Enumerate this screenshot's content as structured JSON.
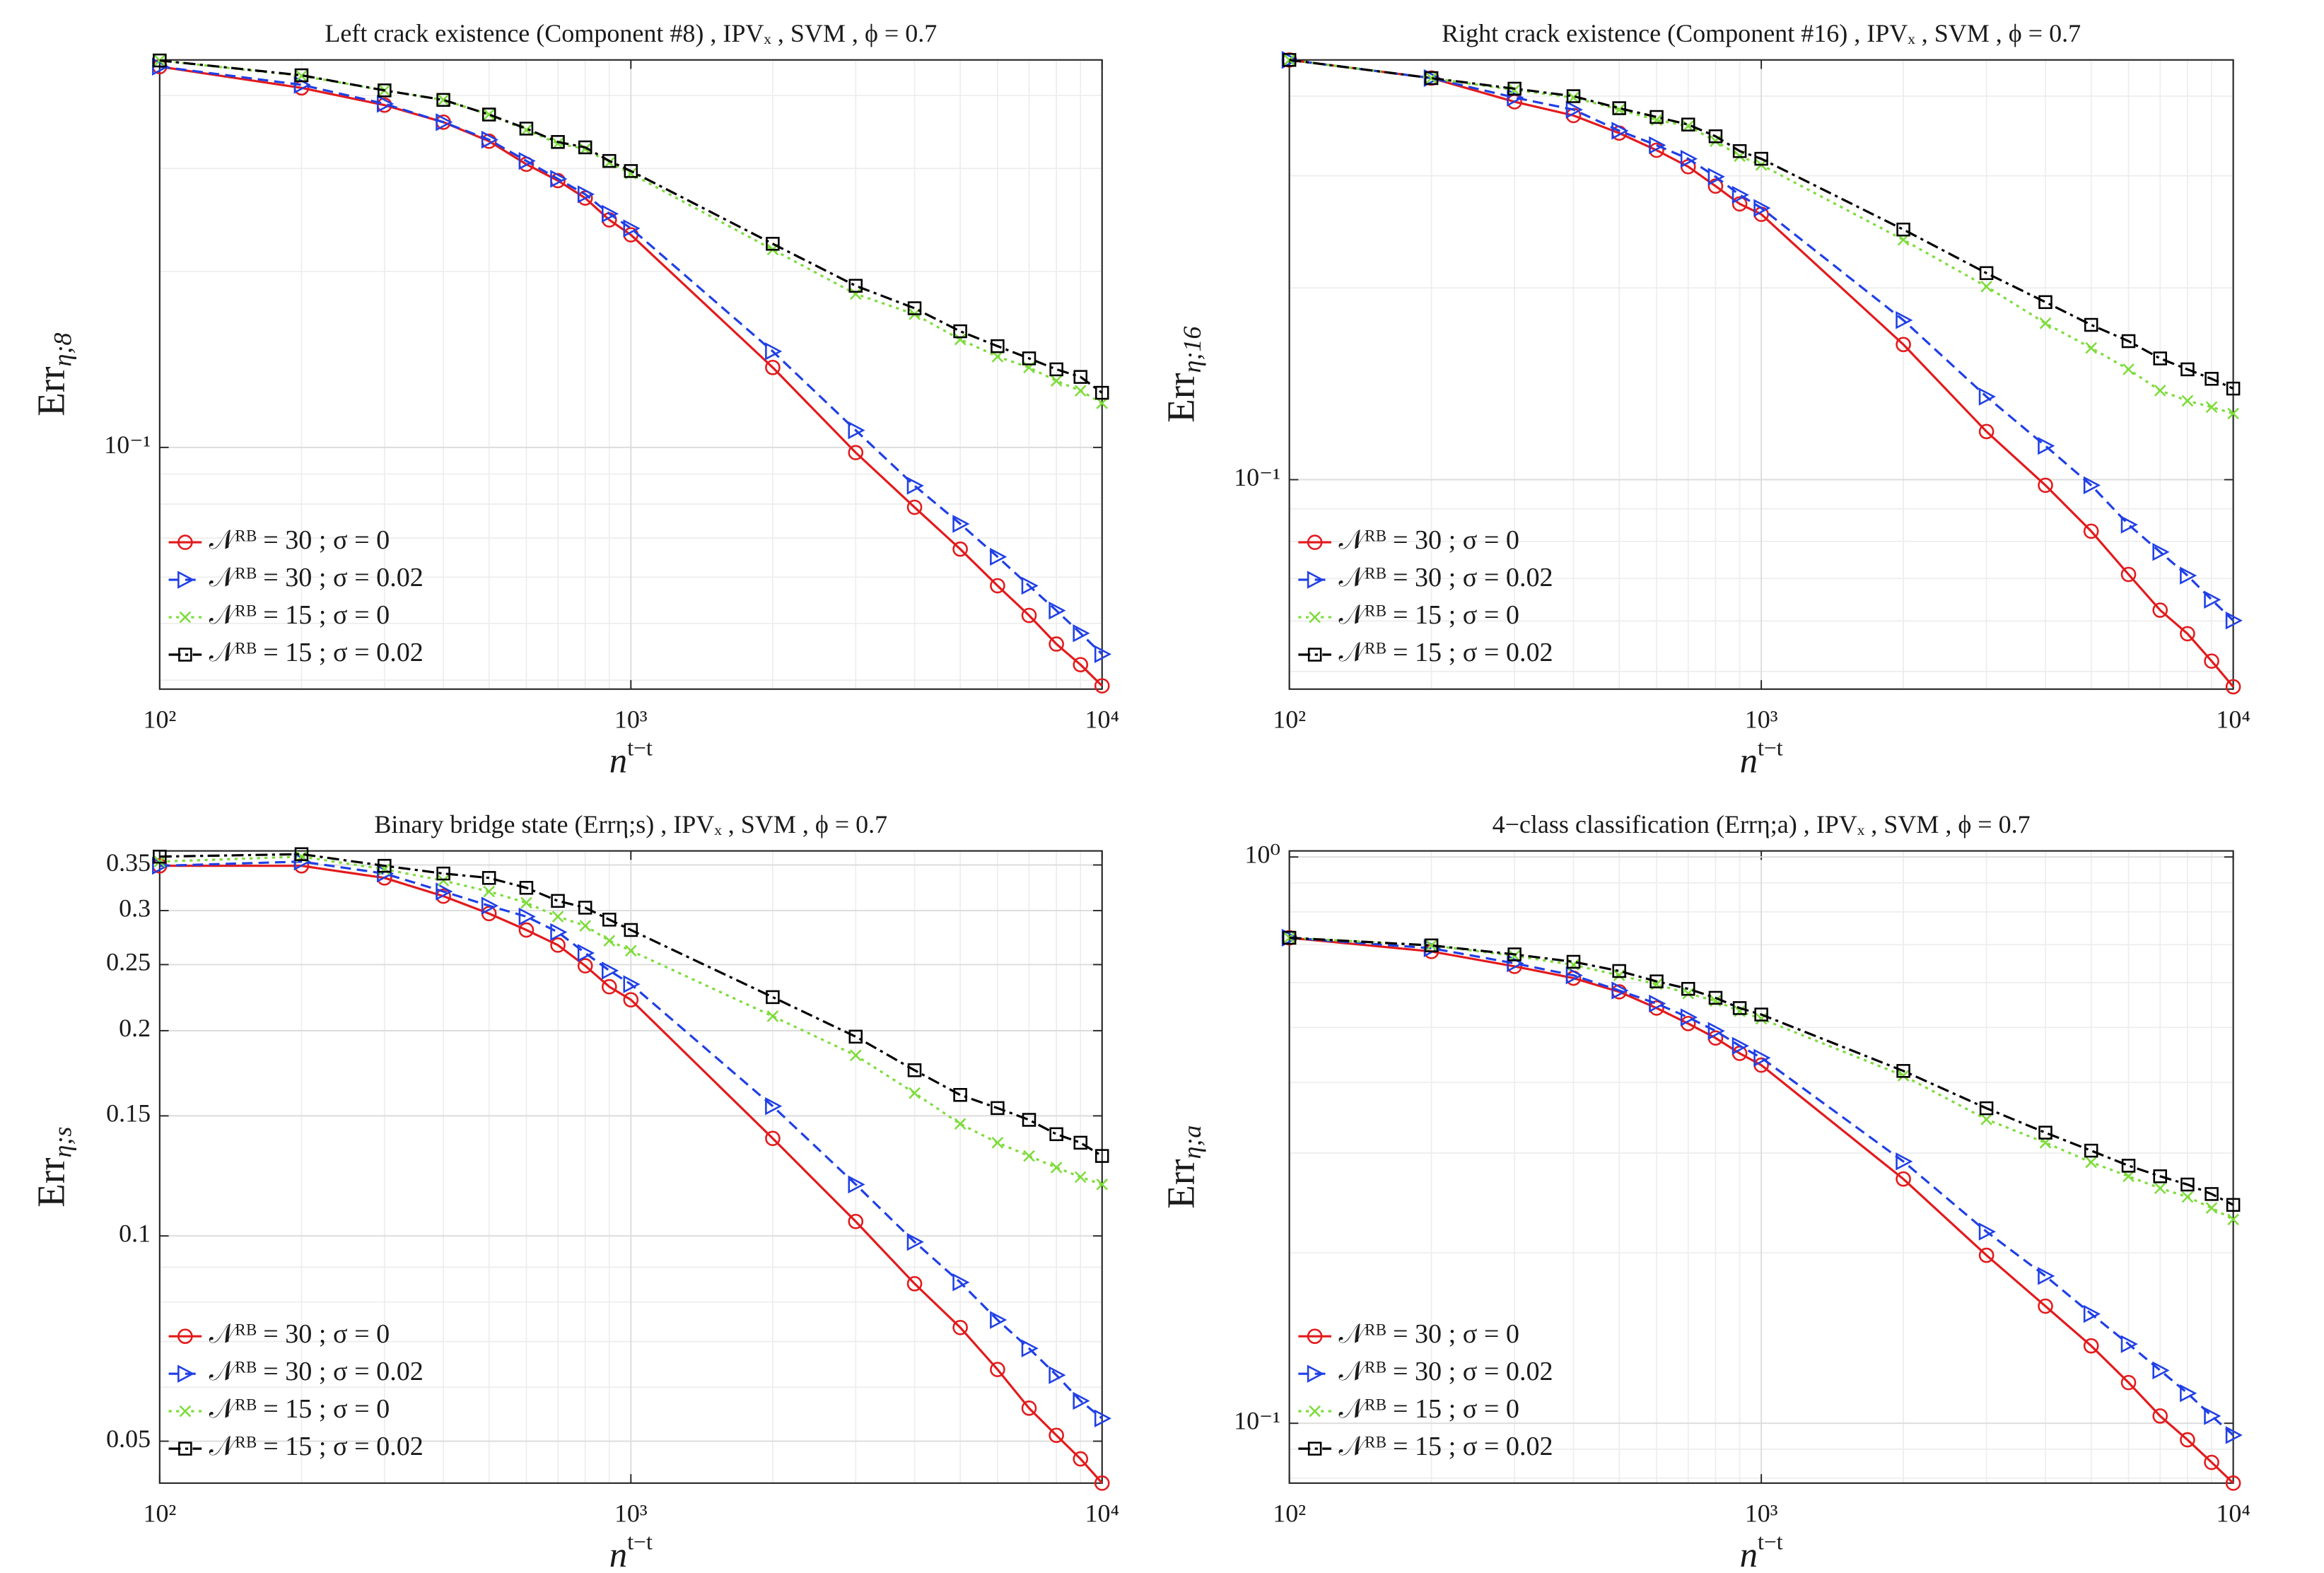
{
  "chart_data": [
    {
      "type": "line",
      "title": "Left crack existence (Component #8) , IPVₓ , SVM , ϕ = 0.7",
      "xlabel": [
        "n",
        "t−t"
      ],
      "ylabel": [
        "Err",
        "η;8"
      ],
      "xscale": "log",
      "yscale": "log",
      "grid": true,
      "minor_grid": true,
      "legend": "lower left",
      "xlim": [
        100,
        10000
      ],
      "ylim": [
        0.0386,
        0.46
      ],
      "xticks": [
        {
          "value": 100,
          "label": "10²"
        },
        {
          "value": 1000,
          "label": "10³"
        },
        {
          "value": 10000,
          "label": "10⁴"
        }
      ],
      "yticks": [
        {
          "value": 0.1,
          "label": "10⁻¹"
        }
      ],
      "x": [
        100,
        200,
        300,
        400,
        500,
        600,
        700,
        800,
        900,
        1000,
        2000,
        3000,
        4000,
        5000,
        6000,
        7000,
        8000,
        9000,
        10000
      ],
      "series": [
        {
          "name": "𝒩ᴿᴮ = 30 ; σ = 0",
          "color": "#e31a1c",
          "linestyle": "solid",
          "marker": "circle",
          "values": [
            0.448,
            0.412,
            0.385,
            0.36,
            0.334,
            0.305,
            0.286,
            0.267,
            0.245,
            0.231,
            0.137,
            0.098,
            0.079,
            0.067,
            0.058,
            0.0516,
            0.0461,
            0.0425,
            0.0391
          ]
        },
        {
          "name": "𝒩ᴿᴮ = 30 ; σ = 0.02",
          "color": "#1f3fe6",
          "linestyle": "dashed",
          "marker": "triangle-right",
          "values": [
            0.448,
            0.417,
            0.387,
            0.36,
            0.336,
            0.309,
            0.288,
            0.271,
            0.251,
            0.237,
            0.146,
            0.107,
            0.086,
            0.074,
            0.065,
            0.058,
            0.0526,
            0.0481,
            0.0443
          ]
        },
        {
          "name": "𝒩ᴿᴮ = 15 ; σ = 0",
          "color": "#7ddc3a",
          "linestyle": "dotted",
          "marker": "x",
          "values": [
            0.459,
            0.432,
            0.408,
            0.393,
            0.371,
            0.349,
            0.331,
            0.324,
            0.307,
            0.294,
            0.218,
            0.183,
            0.169,
            0.153,
            0.143,
            0.137,
            0.13,
            0.125,
            0.119
          ]
        },
        {
          "name": "𝒩ᴿᴮ = 15 ; σ = 0.02",
          "color": "#000000",
          "linestyle": "dashdot",
          "marker": "square",
          "values": [
            0.459,
            0.433,
            0.408,
            0.393,
            0.371,
            0.351,
            0.333,
            0.326,
            0.309,
            0.297,
            0.223,
            0.189,
            0.173,
            0.158,
            0.149,
            0.142,
            0.136,
            0.132,
            0.124
          ]
        }
      ]
    },
    {
      "type": "line",
      "title": "Right crack existence (Component #16) , IPVₓ , SVM , ϕ = 0.7",
      "xlabel": [
        "n",
        "t−t"
      ],
      "ylabel": [
        "Err",
        "η;16"
      ],
      "xscale": "log",
      "yscale": "log",
      "grid": true,
      "minor_grid": true,
      "legend": "lower left",
      "xlim": [
        100,
        10000
      ],
      "ylim": [
        0.0469,
        0.456
      ],
      "xticks": [
        {
          "value": 100,
          "label": "10²"
        },
        {
          "value": 1000,
          "label": "10³"
        },
        {
          "value": 10000,
          "label": "10⁴"
        }
      ],
      "yticks": [
        {
          "value": 0.1,
          "label": "10⁻¹"
        }
      ],
      "x": [
        100,
        200,
        300,
        400,
        500,
        600,
        700,
        800,
        900,
        1000,
        2000,
        3000,
        4000,
        5000,
        6000,
        7000,
        8000,
        9000,
        10000
      ],
      "series": [
        {
          "name": "𝒩ᴿᴮ = 30 ; σ = 0",
          "color": "#e31a1c",
          "linestyle": "solid",
          "marker": "circle",
          "values": [
            0.456,
            0.427,
            0.392,
            0.373,
            0.35,
            0.329,
            0.31,
            0.289,
            0.271,
            0.261,
            0.163,
            0.119,
            0.098,
            0.083,
            0.071,
            0.0624,
            0.0573,
            0.0519,
            0.0473
          ]
        },
        {
          "name": "𝒩ᴿᴮ = 30 ; σ = 0.02",
          "color": "#1f3fe6",
          "linestyle": "dashed",
          "marker": "triangle-right",
          "values": [
            0.456,
            0.427,
            0.398,
            0.381,
            0.353,
            0.335,
            0.319,
            0.299,
            0.28,
            0.267,
            0.178,
            0.135,
            0.113,
            0.098,
            0.085,
            0.077,
            0.0707,
            0.0648,
            0.0601
          ]
        },
        {
          "name": "𝒩ᴿᴮ = 15 ; σ = 0",
          "color": "#7ddc3a",
          "linestyle": "dotted",
          "marker": "x",
          "values": [
            0.456,
            0.427,
            0.409,
            0.398,
            0.381,
            0.367,
            0.359,
            0.34,
            0.322,
            0.312,
            0.238,
            0.201,
            0.176,
            0.161,
            0.149,
            0.138,
            0.133,
            0.13,
            0.127
          ]
        },
        {
          "name": "𝒩ᴿᴮ = 15 ; σ = 0.02",
          "color": "#000000",
          "linestyle": "dashdot",
          "marker": "square",
          "values": [
            0.456,
            0.427,
            0.411,
            0.4,
            0.383,
            0.371,
            0.361,
            0.346,
            0.328,
            0.319,
            0.247,
            0.211,
            0.19,
            0.175,
            0.165,
            0.155,
            0.149,
            0.144,
            0.139
          ]
        }
      ]
    },
    {
      "type": "line",
      "title": "Binary bridge state (Errη;s) , IPVₓ , SVM , ϕ = 0.7",
      "xlabel": [
        "n",
        "t−t"
      ],
      "ylabel": [
        "Err",
        "η;s"
      ],
      "xscale": "log",
      "yscale": "log",
      "grid": true,
      "minor_grid": true,
      "legend": "lower left",
      "xlim": [
        100,
        10000
      ],
      "ylim": [
        0.0434,
        0.367
      ],
      "xticks": [
        {
          "value": 100,
          "label": "10²"
        },
        {
          "value": 1000,
          "label": "10³"
        },
        {
          "value": 10000,
          "label": "10⁴"
        }
      ],
      "yticks": [
        0.05,
        0.1,
        0.15,
        0.2,
        0.25,
        0.3,
        0.35
      ],
      "x": [
        100,
        200,
        300,
        400,
        500,
        600,
        700,
        800,
        900,
        1000,
        2000,
        3000,
        4000,
        5000,
        6000,
        7000,
        8000,
        9000,
        10000
      ],
      "series": [
        {
          "name": "𝒩ᴿᴮ = 30 ; σ = 0",
          "color": "#e31a1c",
          "linestyle": "solid",
          "marker": "circle",
          "values": [
            0.349,
            0.349,
            0.335,
            0.315,
            0.297,
            0.281,
            0.267,
            0.249,
            0.232,
            0.222,
            0.139,
            0.105,
            0.0851,
            0.0734,
            0.0637,
            0.0559,
            0.051,
            0.0471,
            0.0434
          ]
        },
        {
          "name": "𝒩ᴿᴮ = 30 ; σ = 0.02",
          "color": "#1f3fe6",
          "linestyle": "dashed",
          "marker": "triangle-right",
          "values": [
            0.349,
            0.354,
            0.34,
            0.32,
            0.305,
            0.294,
            0.279,
            0.26,
            0.245,
            0.234,
            0.155,
            0.119,
            0.098,
            0.0855,
            0.0753,
            0.0684,
            0.0625,
            0.0573,
            0.054
          ]
        },
        {
          "name": "𝒩ᴿᴮ = 15 ; σ = 0",
          "color": "#7ddc3a",
          "linestyle": "dotted",
          "marker": "x",
          "values": [
            0.354,
            0.36,
            0.345,
            0.332,
            0.32,
            0.308,
            0.294,
            0.285,
            0.271,
            0.262,
            0.21,
            0.184,
            0.162,
            0.146,
            0.137,
            0.131,
            0.126,
            0.122,
            0.119
          ]
        },
        {
          "name": "𝒩ᴿᴮ = 15 ; σ = 0.02",
          "color": "#000000",
          "linestyle": "dashdot",
          "marker": "square",
          "values": [
            0.36,
            0.363,
            0.349,
            0.34,
            0.335,
            0.324,
            0.31,
            0.303,
            0.291,
            0.281,
            0.224,
            0.196,
            0.175,
            0.161,
            0.154,
            0.148,
            0.141,
            0.137,
            0.131
          ]
        }
      ]
    },
    {
      "type": "line",
      "title": "4−class classification (Errη;a) , IPVₓ , SVM , ϕ = 0.7",
      "xlabel": [
        "n",
        "t−t"
      ],
      "ylabel": [
        "Err",
        "η;a"
      ],
      "xscale": "log",
      "yscale": "log",
      "grid": true,
      "minor_grid": true,
      "legend": "lower left",
      "xlim": [
        100,
        10000
      ],
      "ylim": [
        0.0784,
        1.025
      ],
      "xticks": [
        {
          "value": 100,
          "label": "10²"
        },
        {
          "value": 1000,
          "label": "10³"
        },
        {
          "value": 10000,
          "label": "10⁴"
        }
      ],
      "yticks": [
        {
          "value": 0.1,
          "label": "10⁻¹"
        },
        {
          "value": 1,
          "label": "10⁰"
        }
      ],
      "x": [
        100,
        200,
        300,
        400,
        500,
        600,
        700,
        800,
        900,
        1000,
        2000,
        3000,
        4000,
        5000,
        6000,
        7000,
        8000,
        9000,
        10000
      ],
      "series": [
        {
          "name": "𝒩ᴿᴮ = 30 ; σ = 0",
          "color": "#e31a1c",
          "linestyle": "solid",
          "marker": "circle",
          "values": [
            0.72,
            0.681,
            0.641,
            0.611,
            0.578,
            0.541,
            0.508,
            0.479,
            0.45,
            0.429,
            0.27,
            0.198,
            0.161,
            0.137,
            0.118,
            0.103,
            0.0935,
            0.0853,
            0.0784
          ]
        },
        {
          "name": "𝒩ᴿᴮ = 30 ; σ = 0.02",
          "color": "#1f3fe6",
          "linestyle": "dashed",
          "marker": "triangle-right",
          "values": [
            0.72,
            0.69,
            0.649,
            0.618,
            0.581,
            0.551,
            0.521,
            0.493,
            0.464,
            0.442,
            0.29,
            0.218,
            0.182,
            0.156,
            0.138,
            0.124,
            0.113,
            0.103,
            0.0953
          ]
        },
        {
          "name": "𝒩ᴿᴮ = 15 ; σ = 0",
          "color": "#7ddc3a",
          "linestyle": "dotted",
          "marker": "x",
          "values": [
            0.72,
            0.698,
            0.669,
            0.645,
            0.618,
            0.596,
            0.574,
            0.557,
            0.534,
            0.518,
            0.411,
            0.344,
            0.313,
            0.289,
            0.273,
            0.26,
            0.251,
            0.24,
            0.229
          ]
        },
        {
          "name": "𝒩ᴿᴮ = 15 ; σ = 0.02",
          "color": "#000000",
          "linestyle": "dashdot",
          "marker": "square",
          "values": [
            0.72,
            0.698,
            0.673,
            0.653,
            0.629,
            0.603,
            0.585,
            0.564,
            0.541,
            0.527,
            0.419,
            0.36,
            0.326,
            0.303,
            0.285,
            0.273,
            0.264,
            0.254,
            0.243
          ]
        }
      ]
    }
  ]
}
